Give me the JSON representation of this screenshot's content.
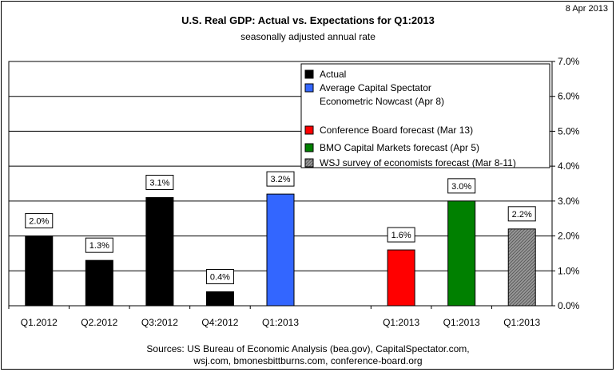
{
  "header": {
    "date": "8 Apr 2013"
  },
  "chart_data": {
    "type": "bar",
    "title": "U.S. Real GDP: Actual vs. Expectations for Q1:2013",
    "subtitle": "seasonally adjusted annual rate",
    "ylim": [
      0,
      7
    ],
    "yticks": [
      "0.0%",
      "1.0%",
      "2.0%",
      "3.0%",
      "4.0%",
      "5.0%",
      "6.0%",
      "7.0%"
    ],
    "grid": true,
    "legend_position": "top-right",
    "legend": [
      {
        "label_lines": [
          "Actual"
        ],
        "color": "#000000",
        "pattern": "solid"
      },
      {
        "label_lines": [
          "Average Capital Spectator",
          "Econometric Nowcast (Apr 8)"
        ],
        "color": "#3366ff",
        "pattern": "solid"
      },
      {
        "label_lines": [
          "Conference Board forecast (Mar 13)"
        ],
        "color": "#ff0000",
        "pattern": "solid"
      },
      {
        "label_lines": [
          "BMO Capital Markets forecast (Apr 5)"
        ],
        "color": "#008000",
        "pattern": "solid"
      },
      {
        "label_lines": [
          "WSJ survey of economists forecast (Mar 8-11)"
        ],
        "color": "#808080",
        "pattern": "hatch"
      }
    ],
    "bars": [
      {
        "category": "Q1.2012",
        "value": 2.0,
        "label": "2.0%",
        "color": "#000000",
        "pattern": "solid"
      },
      {
        "category": "Q2.2012",
        "value": 1.3,
        "label": "1.3%",
        "color": "#000000",
        "pattern": "solid"
      },
      {
        "category": "Q3:2012",
        "value": 3.1,
        "label": "3.1%",
        "color": "#000000",
        "pattern": "solid"
      },
      {
        "category": "Q4:2012",
        "value": 0.4,
        "label": "0.4%",
        "color": "#000000",
        "pattern": "solid"
      },
      {
        "category": "Q1:2013",
        "value": 3.2,
        "label": "3.2%",
        "color": "#3366ff",
        "pattern": "solid"
      },
      {
        "category": "",
        "value": null,
        "label": "",
        "color": "",
        "pattern": "none"
      },
      {
        "category": "Q1:2013",
        "value": 1.6,
        "label": "1.6%",
        "color": "#ff0000",
        "pattern": "solid"
      },
      {
        "category": "Q1:2013",
        "value": 3.0,
        "label": "3.0%",
        "color": "#008000",
        "pattern": "solid"
      },
      {
        "category": "Q1:2013",
        "value": 2.2,
        "label": "2.2%",
        "color": "#808080",
        "pattern": "hatch"
      }
    ]
  },
  "footer": {
    "sources_line1": "Sources: US Bureau of Economic Analysis (bea.gov), CapitalSpectator.com,",
    "sources_line2": "wsj.com, bmonesbittburns.com, conference-board.org"
  }
}
